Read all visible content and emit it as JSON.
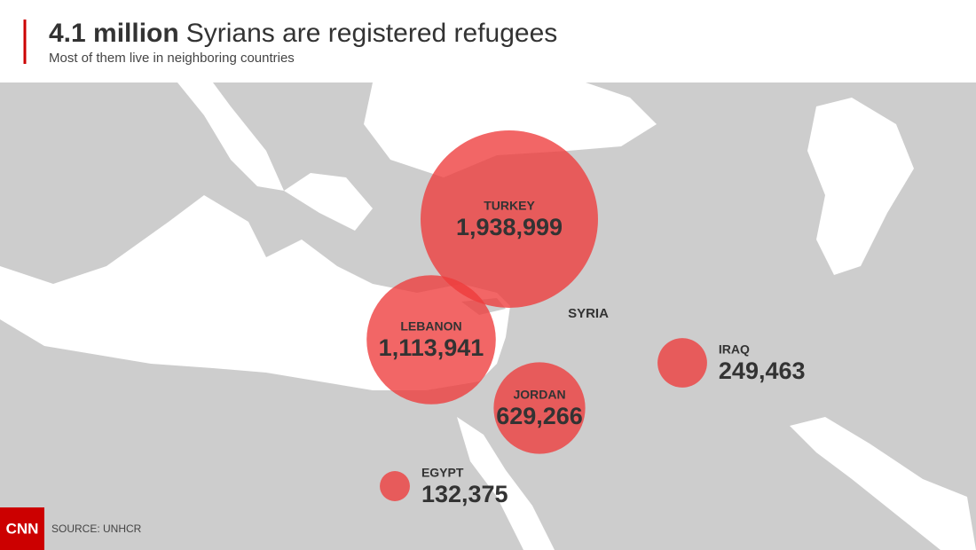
{
  "header": {
    "title_bold": "4.1 million",
    "title_rest": "Syrians are registered refugees",
    "subtitle": "Most of them live in neighboring countries"
  },
  "map": {
    "label": "SYRIA",
    "countries": [
      {
        "name": "TURKEY",
        "value": 1938999,
        "value_label": "1,938,999"
      },
      {
        "name": "LEBANON",
        "value": 1113941,
        "value_label": "1,113,941"
      },
      {
        "name": "JORDAN",
        "value": 629266,
        "value_label": "629,266"
      },
      {
        "name": "IRAQ",
        "value": 249463,
        "value_label": "249,463"
      },
      {
        "name": "EGYPT",
        "value": 132375,
        "value_label": "132,375"
      }
    ]
  },
  "footer": {
    "logo": "CNN",
    "source": "SOURCE: UNHCR"
  }
}
